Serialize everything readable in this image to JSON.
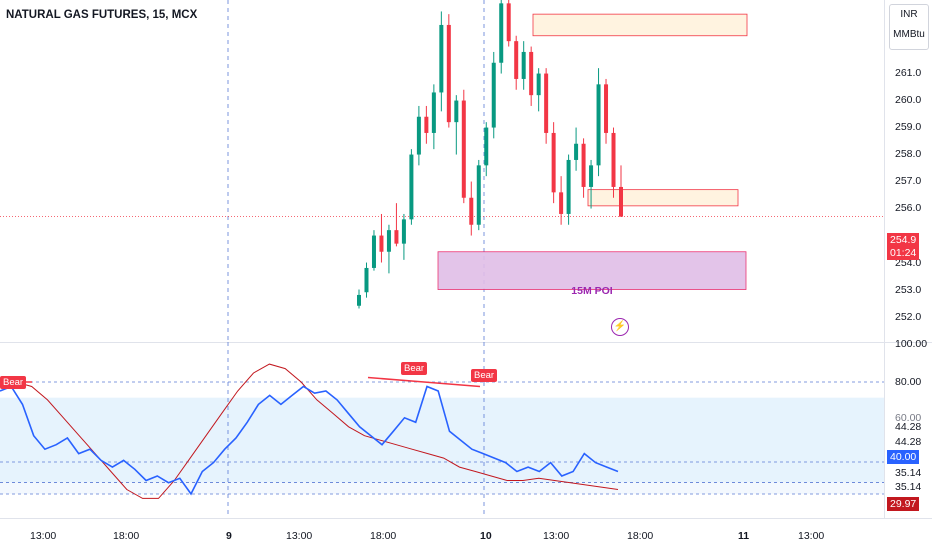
{
  "header": {
    "title": "NATURAL GAS FUTURES, 15, MCX"
  },
  "price_scale": {
    "currency": "INR",
    "unit": "MMBtu",
    "ticks": [
      "261.0",
      "260.0",
      "259.0",
      "258.0",
      "257.0",
      "256.0",
      "254.0",
      "253.0",
      "252.0"
    ],
    "last_price": "254.9",
    "countdown": "01:24",
    "last_price_color": "#f23645"
  },
  "rsi_scale": {
    "ticks": [
      "100.00",
      "80.00",
      "60.00",
      "44.28",
      "44.28",
      "35.14",
      "35.14"
    ],
    "rsi_value": "40.00",
    "rsi_value_color": "#2962ff",
    "low_value": "29.97",
    "low_value_color": "#c2181f"
  },
  "time_axis": {
    "labels": [
      {
        "text": "13:00",
        "bold": false
      },
      {
        "text": "18:00",
        "bold": false
      },
      {
        "text": "9",
        "bold": true
      },
      {
        "text": "13:00",
        "bold": false
      },
      {
        "text": "18:00",
        "bold": false
      },
      {
        "text": "10",
        "bold": true
      },
      {
        "text": "13:00",
        "bold": false
      },
      {
        "text": "18:00",
        "bold": false
      },
      {
        "text": "11",
        "bold": true
      },
      {
        "text": "13:00",
        "bold": false
      }
    ]
  },
  "annotations": {
    "poi_label": "15M POI",
    "bear_labels": [
      "Bear",
      "Bear",
      "Bear"
    ]
  },
  "colors": {
    "up": "#089981",
    "down": "#f23645",
    "rsi_line": "#2962ff",
    "signal_line": "#c2181f",
    "poi_fill": "#e1bee7",
    "zone_fill": "#fff3e0"
  },
  "chart_data": {
    "type": "candlestick",
    "title": "NATURAL GAS FUTURES, 15, MCX",
    "ylim": [
      251.5,
      262.5
    ],
    "candles": [
      {
        "o": 251.6,
        "h": 252.2,
        "l": 251.5,
        "c": 252.0
      },
      {
        "o": 252.1,
        "h": 253.2,
        "l": 251.9,
        "c": 253.0
      },
      {
        "o": 253.0,
        "h": 254.4,
        "l": 252.9,
        "c": 254.2
      },
      {
        "o": 254.2,
        "h": 255.0,
        "l": 253.2,
        "c": 253.6
      },
      {
        "o": 253.6,
        "h": 254.6,
        "l": 252.8,
        "c": 254.4
      },
      {
        "o": 254.4,
        "h": 255.4,
        "l": 253.8,
        "c": 253.9
      },
      {
        "o": 253.9,
        "h": 255.0,
        "l": 253.3,
        "c": 254.8
      },
      {
        "o": 254.8,
        "h": 257.4,
        "l": 254.6,
        "c": 257.2
      },
      {
        "o": 257.2,
        "h": 259.0,
        "l": 256.8,
        "c": 258.6
      },
      {
        "o": 258.6,
        "h": 259.0,
        "l": 257.6,
        "c": 258.0
      },
      {
        "o": 258.0,
        "h": 259.8,
        "l": 257.4,
        "c": 259.5
      },
      {
        "o": 259.5,
        "h": 262.5,
        "l": 258.8,
        "c": 262.0
      },
      {
        "o": 262.0,
        "h": 262.4,
        "l": 258.2,
        "c": 258.4
      },
      {
        "o": 258.4,
        "h": 259.4,
        "l": 257.2,
        "c": 259.2
      },
      {
        "o": 259.2,
        "h": 259.6,
        "l": 255.4,
        "c": 255.6
      },
      {
        "o": 255.6,
        "h": 256.2,
        "l": 254.2,
        "c": 254.6
      },
      {
        "o": 254.6,
        "h": 257.0,
        "l": 254.4,
        "c": 256.8
      },
      {
        "o": 256.8,
        "h": 258.4,
        "l": 256.4,
        "c": 258.2
      },
      {
        "o": 258.2,
        "h": 261.0,
        "l": 257.8,
        "c": 260.6
      },
      {
        "o": 260.6,
        "h": 263.0,
        "l": 260.2,
        "c": 262.8
      },
      {
        "o": 262.8,
        "h": 263.0,
        "l": 261.2,
        "c": 261.4
      },
      {
        "o": 261.4,
        "h": 261.6,
        "l": 259.6,
        "c": 260.0
      },
      {
        "o": 260.0,
        "h": 261.4,
        "l": 259.6,
        "c": 261.0
      },
      {
        "o": 261.0,
        "h": 261.2,
        "l": 259.0,
        "c": 259.4
      },
      {
        "o": 259.4,
        "h": 260.4,
        "l": 258.8,
        "c": 260.2
      },
      {
        "o": 260.2,
        "h": 260.4,
        "l": 257.6,
        "c": 258.0
      },
      {
        "o": 258.0,
        "h": 258.4,
        "l": 255.4,
        "c": 255.8
      },
      {
        "o": 255.8,
        "h": 256.4,
        "l": 254.6,
        "c": 255.0
      },
      {
        "o": 255.0,
        "h": 257.2,
        "l": 254.6,
        "c": 257.0
      },
      {
        "o": 257.0,
        "h": 258.2,
        "l": 256.6,
        "c": 257.6
      },
      {
        "o": 257.6,
        "h": 257.8,
        "l": 255.6,
        "c": 256.0
      },
      {
        "o": 256.0,
        "h": 257.0,
        "l": 255.2,
        "c": 256.8
      },
      {
        "o": 256.8,
        "h": 260.4,
        "l": 256.4,
        "c": 259.8
      },
      {
        "o": 259.8,
        "h": 260.0,
        "l": 257.6,
        "c": 258.0
      },
      {
        "o": 258.0,
        "h": 258.2,
        "l": 255.6,
        "c": 256.0
      },
      {
        "o": 256.0,
        "h": 256.8,
        "l": 254.9,
        "c": 254.9
      }
    ],
    "zones": [
      {
        "name": "15M POI",
        "y0": 252.2,
        "y1": 253.6
      },
      {
        "name": "",
        "y0": 261.6,
        "y1": 262.4
      },
      {
        "name": "",
        "y0": 255.3,
        "y1": 255.9
      }
    ],
    "rsi": {
      "ylim": [
        25,
        100
      ],
      "bands": [
        35.14,
        44.28,
        80.0
      ],
      "rsi_values": [
        76,
        78,
        70,
        56,
        50,
        52,
        55,
        48,
        50,
        45,
        42,
        45,
        41,
        36,
        38,
        35,
        37,
        30,
        40,
        44,
        50,
        55,
        62,
        70,
        74,
        70,
        74,
        78,
        75,
        76,
        72,
        66,
        60,
        56,
        52,
        58,
        64,
        62,
        78,
        76,
        58,
        54,
        50,
        48,
        46,
        44,
        40,
        42,
        40,
        44,
        38,
        40,
        48,
        44,
        42,
        40
      ],
      "signal_values": [
        80,
        80,
        78,
        72,
        64,
        56,
        48,
        40,
        32,
        28,
        28,
        36,
        46,
        56,
        66,
        76,
        84,
        88,
        86,
        80,
        72,
        66,
        60,
        56,
        54,
        52,
        50,
        48,
        46,
        42,
        40,
        38,
        36,
        36,
        37,
        36,
        35,
        34,
        33,
        32
      ]
    }
  }
}
